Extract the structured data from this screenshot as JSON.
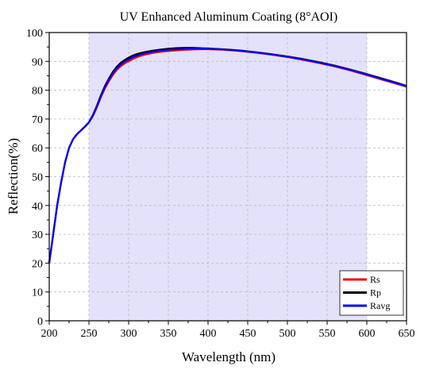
{
  "chart_data": {
    "type": "line",
    "title": "UV Enhanced Aluminum Coating (8°AOI)",
    "xlabel": "Wavelength (nm)",
    "ylabel": "Reflection(%)",
    "xlim": [
      200,
      650
    ],
    "ylim": [
      0,
      100
    ],
    "x_ticks": [
      200,
      250,
      300,
      350,
      400,
      450,
      500,
      550,
      600,
      650
    ],
    "y_ticks": [
      0,
      10,
      20,
      30,
      40,
      50,
      60,
      70,
      80,
      90,
      100
    ],
    "grid": true,
    "legend_position": "bottom-right",
    "highlight_band": {
      "x_start": 250,
      "x_end": 600,
      "color": "#e4e1fb"
    },
    "series": [
      {
        "name": "Rs",
        "color": "#ff0000",
        "x": [
          200,
          205,
          210,
          215,
          220,
          225,
          230,
          235,
          240,
          245,
          250,
          255,
          260,
          265,
          270,
          275,
          280,
          285,
          290,
          295,
          300,
          305,
          310,
          315,
          320,
          330,
          340,
          350,
          360,
          370,
          380,
          390,
          400,
          420,
          440,
          460,
          480,
          500,
          520,
          540,
          560,
          580,
          600,
          620,
          640,
          650
        ],
        "y": [
          20,
          30,
          40,
          48,
          55,
          60,
          63,
          64.7,
          66,
          67.3,
          68.8,
          71,
          74,
          77.5,
          80.5,
          83,
          85.2,
          87,
          88.3,
          89.3,
          90,
          90.8,
          91.4,
          91.9,
          92.3,
          92.9,
          93.3,
          93.6,
          93.8,
          94.0,
          94.1,
          94.2,
          94.2,
          94.0,
          93.6,
          93.0,
          92.3,
          91.5,
          90.5,
          89.4,
          88.2,
          86.8,
          85.2,
          83.6,
          82.0,
          81.2
        ]
      },
      {
        "name": "Rp",
        "color": "#000000",
        "x": [
          200,
          205,
          210,
          215,
          220,
          225,
          230,
          235,
          240,
          245,
          250,
          255,
          260,
          265,
          270,
          275,
          280,
          285,
          290,
          295,
          300,
          305,
          310,
          315,
          320,
          330,
          340,
          350,
          360,
          370,
          380,
          390,
          400,
          420,
          440,
          460,
          480,
          500,
          520,
          540,
          560,
          580,
          600,
          620,
          640,
          650
        ],
        "y": [
          20,
          30,
          40,
          48,
          55,
          60,
          63,
          64.8,
          66.1,
          67.4,
          68.9,
          71.4,
          74.6,
          78.2,
          81.4,
          84,
          86.3,
          88.1,
          89.5,
          90.5,
          91.3,
          92.0,
          92.5,
          92.9,
          93.2,
          93.7,
          94.1,
          94.4,
          94.6,
          94.7,
          94.7,
          94.6,
          94.5,
          94.2,
          93.8,
          93.2,
          92.5,
          91.7,
          90.8,
          89.7,
          88.5,
          87.1,
          85.6,
          84.0,
          82.4,
          81.5
        ]
      },
      {
        "name": "Ravg",
        "color": "#0000ff",
        "x": [
          200,
          205,
          210,
          215,
          220,
          225,
          230,
          235,
          240,
          245,
          250,
          255,
          260,
          265,
          270,
          275,
          280,
          285,
          290,
          295,
          300,
          305,
          310,
          315,
          320,
          330,
          340,
          350,
          360,
          370,
          380,
          390,
          400,
          420,
          440,
          460,
          480,
          500,
          520,
          540,
          560,
          580,
          600,
          620,
          640,
          650
        ],
        "y": [
          20,
          30,
          40,
          48,
          55,
          60,
          63,
          64.75,
          66.05,
          67.35,
          68.85,
          71.2,
          74.3,
          77.85,
          80.95,
          83.5,
          85.75,
          87.55,
          88.9,
          89.9,
          90.65,
          91.4,
          91.95,
          92.4,
          92.75,
          93.3,
          93.7,
          94.0,
          94.2,
          94.35,
          94.4,
          94.4,
          94.35,
          94.1,
          93.7,
          93.1,
          92.4,
          91.6,
          90.65,
          89.55,
          88.35,
          86.95,
          85.4,
          83.8,
          82.2,
          81.35
        ]
      }
    ]
  }
}
